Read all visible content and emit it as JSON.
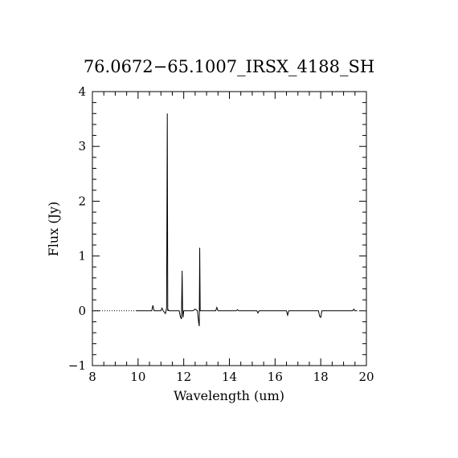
{
  "chart_data": {
    "type": "line",
    "title": "76.0672−65.1007_IRSX_4188_SH",
    "xlabel": "Wavelength (um)",
    "ylabel": "Flux (Jy)",
    "xlim": [
      8,
      20
    ],
    "ylim": [
      -1,
      4
    ],
    "x_ticks": [
      8,
      10,
      12,
      14,
      16,
      18,
      20
    ],
    "x_tick_labels": [
      "8",
      "10",
      "12",
      "14",
      "16",
      "18",
      "20"
    ],
    "y_ticks": [
      -1,
      0,
      1,
      2,
      3,
      4
    ],
    "y_tick_labels": [
      "−1",
      "0",
      "1",
      "2",
      "3",
      "4"
    ],
    "grid": false,
    "zero_line": {
      "y": 0,
      "style": "dotted",
      "xrange": [
        8,
        9.9
      ]
    },
    "series": [
      {
        "values_x": [
          9.9,
          10.6,
          10.65,
          10.7,
          11.0,
          11.05,
          11.1,
          11.2,
          11.25,
          11.28,
          11.3,
          11.32,
          11.35,
          11.8,
          11.85,
          11.9,
          11.93,
          11.95,
          11.97,
          12.0,
          12.4,
          12.5,
          12.6,
          12.65,
          12.68,
          12.7,
          12.72,
          12.75,
          13.4,
          13.45,
          13.5,
          14.3,
          14.35,
          14.4,
          15.2,
          15.25,
          15.3,
          16.5,
          16.55,
          16.6,
          17.9,
          17.95,
          18.0,
          18.05,
          19.4,
          19.45,
          19.5,
          19.6
        ],
        "values_y": [
          0.0,
          0.0,
          0.1,
          0.0,
          0.0,
          0.05,
          0.0,
          -0.05,
          0.05,
          3.6,
          0.0,
          0.02,
          0.0,
          0.0,
          -0.1,
          -0.15,
          0.73,
          0.0,
          -0.12,
          0.0,
          0.0,
          0.03,
          0.0,
          -0.2,
          -0.28,
          1.15,
          0.0,
          0.0,
          0.0,
          0.06,
          0.0,
          0.0,
          0.02,
          0.0,
          0.0,
          -0.04,
          0.0,
          0.0,
          -0.08,
          0.0,
          0.0,
          -0.1,
          -0.12,
          0.0,
          0.0,
          0.03,
          0.0,
          0.0
        ]
      }
    ]
  }
}
